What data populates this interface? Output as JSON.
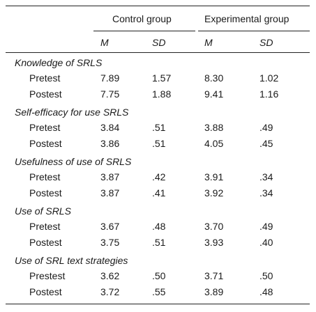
{
  "header": {
    "groups": [
      "Control group",
      "Experimental group"
    ],
    "stats": [
      "M",
      "SD",
      "M",
      "SD"
    ]
  },
  "sections": [
    {
      "title": "Knowledge of SRLS",
      "rows": [
        {
          "label": "Pretest",
          "values": [
            "7.89",
            "1.57",
            "8.30",
            "1.02"
          ]
        },
        {
          "label": "Postest",
          "values": [
            "7.75",
            "1.88",
            "9.41",
            "1.16"
          ]
        }
      ]
    },
    {
      "title": "Self-efficacy for use SRLS",
      "rows": [
        {
          "label": "Pretest",
          "values": [
            "3.84",
            ".51",
            "3.88",
            ".49"
          ]
        },
        {
          "label": "Postest",
          "values": [
            "3.86",
            ".51",
            "4.05",
            ".45"
          ]
        }
      ]
    },
    {
      "title": "Usefulness of use of SRLS",
      "rows": [
        {
          "label": "Pretest",
          "values": [
            "3.87",
            ".42",
            "3.91",
            ".34"
          ]
        },
        {
          "label": "Postest",
          "values": [
            "3.87",
            ".41",
            "3.92",
            ".34"
          ]
        }
      ]
    },
    {
      "title": "Use of SRLS",
      "rows": [
        {
          "label": "Pretest",
          "values": [
            "3.67",
            ".48",
            "3.70",
            ".49"
          ]
        },
        {
          "label": "Postest",
          "values": [
            "3.75",
            ".51",
            "3.93",
            ".40"
          ]
        }
      ]
    },
    {
      "title": "Use of SRL text strategies",
      "rows": [
        {
          "label": "Prestest",
          "values": [
            "3.62",
            ".50",
            "3.71",
            ".50"
          ]
        },
        {
          "label": "Postest",
          "values": [
            "3.72",
            ".55",
            "3.89",
            ".48"
          ]
        }
      ]
    }
  ]
}
